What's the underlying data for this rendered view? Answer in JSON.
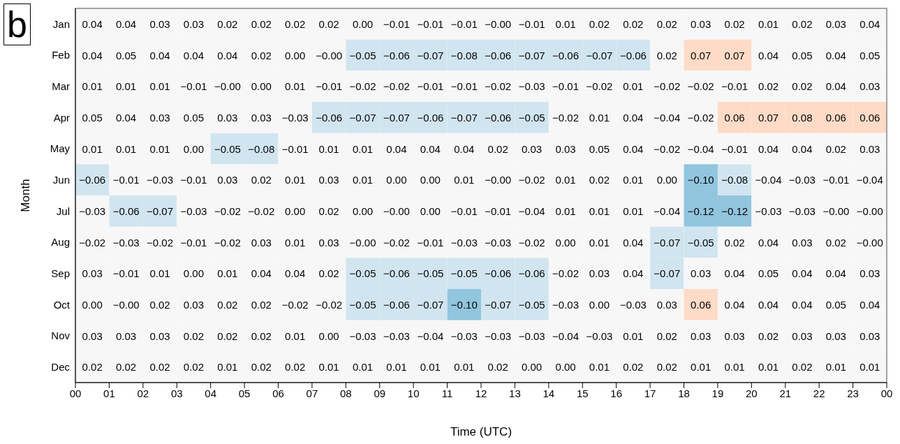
{
  "chart_data": {
    "type": "heatmap",
    "xlabel": "Time (UTC)",
    "ylabel": "Month",
    "annotations": [
      "b"
    ],
    "data_labels": true,
    "xlim": [
      0,
      24
    ],
    "xticks": [
      {
        "value": 0,
        "label": "00"
      },
      {
        "value": 1,
        "label": "01"
      },
      {
        "value": 2,
        "label": "02"
      },
      {
        "value": 3,
        "label": "03"
      },
      {
        "value": 4,
        "label": "04"
      },
      {
        "value": 5,
        "label": "05"
      },
      {
        "value": 6,
        "label": "06"
      },
      {
        "value": 7,
        "label": "07"
      },
      {
        "value": 8,
        "label": "08"
      },
      {
        "value": 9,
        "label": "09"
      },
      10,
      11,
      12,
      13,
      14,
      15,
      16,
      17,
      18,
      19,
      20,
      21,
      22,
      23,
      {
        "value": 24,
        "label": "00"
      }
    ],
    "y_categories": [
      "Jan",
      "Feb",
      "Mar",
      "Apr",
      "May",
      "Jun",
      "Jul",
      "Aug",
      "Sep",
      "Oct",
      "Nov",
      "Dec"
    ],
    "cells": [
      [
        0.04,
        0.04,
        0.03,
        0.03,
        0.02,
        0.02,
        0.02,
        0.02,
        0.0,
        -0.01,
        -0.01,
        -0.01,
        -0.0,
        -0.01,
        0.01,
        0.02,
        0.02,
        0.02,
        0.03,
        0.02,
        0.01,
        0.02,
        0.03,
        0.04
      ],
      [
        0.04,
        0.05,
        0.04,
        0.04,
        0.04,
        0.02,
        0.0,
        -0.0,
        -0.05,
        -0.06,
        -0.07,
        -0.08,
        -0.06,
        -0.07,
        -0.06,
        -0.07,
        -0.06,
        0.02,
        0.07,
        0.07,
        0.04,
        0.05,
        0.04,
        0.05
      ],
      [
        0.01,
        0.01,
        0.01,
        -0.01,
        -0.0,
        0.0,
        0.01,
        -0.01,
        -0.02,
        -0.02,
        -0.01,
        -0.01,
        -0.02,
        -0.03,
        -0.01,
        -0.02,
        0.01,
        -0.02,
        -0.02,
        -0.01,
        0.02,
        0.02,
        0.04,
        0.03
      ],
      [
        0.05,
        0.04,
        0.03,
        0.05,
        0.03,
        0.03,
        -0.03,
        -0.06,
        -0.07,
        -0.07,
        -0.06,
        -0.07,
        -0.06,
        -0.05,
        -0.02,
        0.01,
        0.04,
        -0.04,
        -0.02,
        0.06,
        0.07,
        0.08,
        0.06,
        0.06
      ],
      [
        0.01,
        0.01,
        0.01,
        0.0,
        -0.05,
        -0.08,
        -0.01,
        0.01,
        0.01,
        0.04,
        0.04,
        0.04,
        0.02,
        0.03,
        0.03,
        0.05,
        0.04,
        -0.02,
        -0.04,
        -0.01,
        0.04,
        0.04,
        0.02,
        0.03
      ],
      [
        -0.06,
        -0.01,
        -0.03,
        -0.01,
        0.03,
        0.02,
        0.01,
        0.03,
        0.01,
        0.0,
        0.0,
        0.01,
        -0.0,
        -0.02,
        0.01,
        0.02,
        0.01,
        0.0,
        -0.1,
        -0.08,
        -0.04,
        -0.03,
        -0.01,
        -0.04
      ],
      [
        -0.03,
        -0.06,
        -0.07,
        -0.03,
        -0.02,
        -0.02,
        0.0,
        0.02,
        0.0,
        -0.0,
        0.0,
        -0.01,
        -0.01,
        -0.04,
        0.01,
        0.01,
        0.01,
        -0.04,
        -0.12,
        -0.12,
        -0.03,
        -0.03,
        -0.0,
        -0.0
      ],
      [
        -0.02,
        -0.03,
        -0.02,
        -0.01,
        -0.02,
        0.03,
        0.01,
        0.03,
        -0.0,
        -0.02,
        -0.01,
        -0.03,
        -0.03,
        -0.02,
        0.0,
        0.01,
        0.04,
        -0.07,
        -0.05,
        0.02,
        0.04,
        0.03,
        0.02,
        -0.0
      ],
      [
        0.03,
        -0.01,
        0.01,
        0.0,
        0.01,
        0.04,
        0.04,
        0.02,
        -0.05,
        -0.06,
        -0.05,
        -0.05,
        -0.06,
        -0.06,
        -0.02,
        0.03,
        0.04,
        -0.07,
        0.03,
        0.04,
        0.05,
        0.04,
        0.04,
        0.03
      ],
      [
        0.0,
        -0.0,
        0.02,
        0.03,
        0.02,
        0.02,
        -0.02,
        -0.02,
        -0.05,
        -0.06,
        -0.07,
        -0.1,
        -0.07,
        -0.05,
        -0.03,
        0.0,
        -0.03,
        0.03,
        0.06,
        0.04,
        0.04,
        0.04,
        0.05,
        0.04
      ],
      [
        0.03,
        0.03,
        0.03,
        0.02,
        0.02,
        0.02,
        0.01,
        0.0,
        -0.03,
        -0.03,
        -0.04,
        -0.03,
        -0.03,
        -0.03,
        -0.04,
        -0.03,
        0.01,
        0.02,
        0.03,
        0.03,
        0.02,
        0.03,
        0.03,
        0.03
      ],
      [
        0.02,
        0.02,
        0.02,
        0.02,
        0.01,
        0.02,
        0.02,
        0.01,
        0.01,
        0.01,
        0.01,
        0.01,
        0.02,
        0.0,
        0.0,
        0.01,
        0.02,
        0.02,
        0.01,
        0.01,
        0.01,
        0.02,
        0.01,
        0.01
      ]
    ],
    "cell_labels": [
      [
        "0.04",
        "0.04",
        "0.03",
        "0.03",
        "0.02",
        "0.02",
        "0.02",
        "0.02",
        "0.00",
        "−0.01",
        "−0.01",
        "−0.01",
        "−0.00",
        "−0.01",
        "0.01",
        "0.02",
        "0.02",
        "0.02",
        "0.03",
        "0.02",
        "0.01",
        "0.02",
        "0.03",
        "0.04"
      ],
      [
        "0.04",
        "0.05",
        "0.04",
        "0.04",
        "0.04",
        "0.02",
        "0.00",
        "−0.00",
        "−0.05",
        "−0.06",
        "−0.07",
        "−0.08",
        "−0.06",
        "−0.07",
        "−0.06",
        "−0.07",
        "−0.06",
        "0.02",
        "0.07",
        "0.07",
        "0.04",
        "0.05",
        "0.04",
        "0.05"
      ],
      [
        "0.01",
        "0.01",
        "0.01",
        "−0.01",
        "−0.00",
        "0.00",
        "0.01",
        "−0.01",
        "−0.02",
        "−0.02",
        "−0.01",
        "−0.01",
        "−0.02",
        "−0.03",
        "−0.01",
        "−0.02",
        "0.01",
        "−0.02",
        "−0.02",
        "−0.01",
        "0.02",
        "0.02",
        "0.04",
        "0.03"
      ],
      [
        "0.05",
        "0.04",
        "0.03",
        "0.05",
        "0.03",
        "0.03",
        "−0.03",
        "−0.06",
        "−0.07",
        "−0.07",
        "−0.06",
        "−0.07",
        "−0.06",
        "−0.05",
        "−0.02",
        "0.01",
        "0.04",
        "−0.04",
        "−0.02",
        "0.06",
        "0.07",
        "0.08",
        "0.06",
        "0.06"
      ],
      [
        "0.01",
        "0.01",
        "0.01",
        "0.00",
        "−0.05",
        "−0.08",
        "−0.01",
        "0.01",
        "0.01",
        "0.04",
        "0.04",
        "0.04",
        "0.02",
        "0.03",
        "0.03",
        "0.05",
        "0.04",
        "−0.02",
        "−0.04",
        "−0.01",
        "0.04",
        "0.04",
        "0.02",
        "0.03"
      ],
      [
        "−0.06",
        "−0.01",
        "−0.03",
        "−0.01",
        "0.03",
        "0.02",
        "0.01",
        "0.03",
        "0.01",
        "0.00",
        "0.00",
        "0.01",
        "−0.00",
        "−0.02",
        "0.01",
        "0.02",
        "0.01",
        "0.00",
        "−0.10",
        "−0.08",
        "−0.04",
        "−0.03",
        "−0.01",
        "−0.04"
      ],
      [
        "−0.03",
        "−0.06",
        "−0.07",
        "−0.03",
        "−0.02",
        "−0.02",
        "0.00",
        "0.02",
        "0.00",
        "−0.00",
        "0.00",
        "−0.01",
        "−0.01",
        "−0.04",
        "0.01",
        "0.01",
        "0.01",
        "−0.04",
        "−0.12",
        "−0.12",
        "−0.03",
        "−0.03",
        "−0.00",
        "−0.00"
      ],
      [
        "−0.02",
        "−0.03",
        "−0.02",
        "−0.01",
        "−0.02",
        "0.03",
        "0.01",
        "0.03",
        "−0.00",
        "−0.02",
        "−0.01",
        "−0.03",
        "−0.03",
        "−0.02",
        "0.00",
        "0.01",
        "0.04",
        "−0.07",
        "−0.05",
        "0.02",
        "0.04",
        "0.03",
        "0.02",
        "−0.00"
      ],
      [
        "0.03",
        "−0.01",
        "0.01",
        "0.00",
        "0.01",
        "0.04",
        "0.04",
        "0.02",
        "−0.05",
        "−0.06",
        "−0.05",
        "−0.05",
        "−0.06",
        "−0.06",
        "−0.02",
        "0.03",
        "0.04",
        "−0.07",
        "0.03",
        "0.04",
        "0.05",
        "0.04",
        "0.04",
        "0.03"
      ],
      [
        "0.00",
        "−0.00",
        "0.02",
        "0.03",
        "0.02",
        "0.02",
        "−0.02",
        "−0.02",
        "−0.05",
        "−0.06",
        "−0.07",
        "−0.10",
        "−0.07",
        "−0.05",
        "−0.03",
        "0.00",
        "−0.03",
        "0.03",
        "0.06",
        "0.04",
        "0.04",
        "0.04",
        "0.05",
        "0.04"
      ],
      [
        "0.03",
        "0.03",
        "0.03",
        "0.02",
        "0.02",
        "0.02",
        "0.01",
        "0.00",
        "−0.03",
        "−0.03",
        "−0.04",
        "−0.03",
        "−0.03",
        "−0.03",
        "−0.04",
        "−0.03",
        "0.01",
        "0.02",
        "0.03",
        "0.03",
        "0.02",
        "0.03",
        "0.03",
        "0.03"
      ],
      [
        "0.02",
        "0.02",
        "0.02",
        "0.02",
        "0.01",
        "0.02",
        "0.02",
        "0.01",
        "0.01",
        "0.01",
        "0.01",
        "0.01",
        "0.02",
        "0.00",
        "0.00",
        "0.01",
        "0.02",
        "0.02",
        "0.01",
        "0.01",
        "0.01",
        "0.02",
        "0.01",
        "0.01"
      ]
    ],
    "colors": [
      [
        "#f7f7f7",
        "#f7f7f7",
        "#f7f7f7",
        "#f7f7f7",
        "#f7f7f7",
        "#f7f7f7",
        "#f7f7f7",
        "#f7f7f7",
        "#f7f7f7",
        "#f7f7f7",
        "#f7f7f7",
        "#f7f7f7",
        "#f7f7f7",
        "#f7f7f7",
        "#f7f7f7",
        "#f7f7f7",
        "#f7f7f7",
        "#f7f7f7",
        "#f7f7f7",
        "#f7f7f7",
        "#f7f7f7",
        "#f7f7f7",
        "#f7f7f7",
        "#f7f7f7"
      ],
      [
        "#f7f7f7",
        "#f7f7f7",
        "#f7f7f7",
        "#f7f7f7",
        "#f7f7f7",
        "#f7f7f7",
        "#f7f7f7",
        "#f7f7f7",
        "#d1e5f0",
        "#d1e5f0",
        "#d1e5f0",
        "#d1e5f0",
        "#d1e5f0",
        "#d1e5f0",
        "#d1e5f0",
        "#d1e5f0",
        "#d1e5f0",
        "#f7f7f7",
        "#fddbc7",
        "#fddbc7",
        "#f7f7f7",
        "#f7f7f7",
        "#f7f7f7",
        "#f7f7f7"
      ],
      [
        "#f7f7f7",
        "#f7f7f7",
        "#f7f7f7",
        "#f7f7f7",
        "#f7f7f7",
        "#f7f7f7",
        "#f7f7f7",
        "#f7f7f7",
        "#f7f7f7",
        "#f7f7f7",
        "#f7f7f7",
        "#f7f7f7",
        "#f7f7f7",
        "#f7f7f7",
        "#f7f7f7",
        "#f7f7f7",
        "#f7f7f7",
        "#f7f7f7",
        "#f7f7f7",
        "#f7f7f7",
        "#f7f7f7",
        "#f7f7f7",
        "#f7f7f7",
        "#f7f7f7"
      ],
      [
        "#f7f7f7",
        "#f7f7f7",
        "#f7f7f7",
        "#f7f7f7",
        "#f7f7f7",
        "#f7f7f7",
        "#f7f7f7",
        "#d1e5f0",
        "#d1e5f0",
        "#d1e5f0",
        "#d1e5f0",
        "#d1e5f0",
        "#d1e5f0",
        "#d1e5f0",
        "#f7f7f7",
        "#f7f7f7",
        "#f7f7f7",
        "#f7f7f7",
        "#f7f7f7",
        "#fddbc7",
        "#fddbc7",
        "#fddbc7",
        "#fddbc7",
        "#fddbc7"
      ],
      [
        "#f7f7f7",
        "#f7f7f7",
        "#f7f7f7",
        "#f7f7f7",
        "#d1e5f0",
        "#d1e5f0",
        "#f7f7f7",
        "#f7f7f7",
        "#f7f7f7",
        "#f7f7f7",
        "#f7f7f7",
        "#f7f7f7",
        "#f7f7f7",
        "#f7f7f7",
        "#f7f7f7",
        "#f7f7f7",
        "#f7f7f7",
        "#f7f7f7",
        "#f7f7f7",
        "#f7f7f7",
        "#f7f7f7",
        "#f7f7f7",
        "#f7f7f7",
        "#f7f7f7"
      ],
      [
        "#d1e5f0",
        "#f7f7f7",
        "#f7f7f7",
        "#f7f7f7",
        "#f7f7f7",
        "#f7f7f7",
        "#f7f7f7",
        "#f7f7f7",
        "#f7f7f7",
        "#f7f7f7",
        "#f7f7f7",
        "#f7f7f7",
        "#f7f7f7",
        "#f7f7f7",
        "#f7f7f7",
        "#f7f7f7",
        "#f7f7f7",
        "#f7f7f7",
        "#92c5de",
        "#d1e5f0",
        "#f7f7f7",
        "#f7f7f7",
        "#f7f7f7",
        "#f7f7f7"
      ],
      [
        "#f7f7f7",
        "#d1e5f0",
        "#d1e5f0",
        "#f7f7f7",
        "#f7f7f7",
        "#f7f7f7",
        "#f7f7f7",
        "#f7f7f7",
        "#f7f7f7",
        "#f7f7f7",
        "#f7f7f7",
        "#f7f7f7",
        "#f7f7f7",
        "#f7f7f7",
        "#f7f7f7",
        "#f7f7f7",
        "#f7f7f7",
        "#f7f7f7",
        "#92c5de",
        "#92c5de",
        "#f7f7f7",
        "#f7f7f7",
        "#f7f7f7",
        "#f7f7f7"
      ],
      [
        "#f7f7f7",
        "#f7f7f7",
        "#f7f7f7",
        "#f7f7f7",
        "#f7f7f7",
        "#f7f7f7",
        "#f7f7f7",
        "#f7f7f7",
        "#f7f7f7",
        "#f7f7f7",
        "#f7f7f7",
        "#f7f7f7",
        "#f7f7f7",
        "#f7f7f7",
        "#f7f7f7",
        "#f7f7f7",
        "#f7f7f7",
        "#d1e5f0",
        "#d1e5f0",
        "#f7f7f7",
        "#f7f7f7",
        "#f7f7f7",
        "#f7f7f7",
        "#f7f7f7"
      ],
      [
        "#f7f7f7",
        "#f7f7f7",
        "#f7f7f7",
        "#f7f7f7",
        "#f7f7f7",
        "#f7f7f7",
        "#f7f7f7",
        "#f7f7f7",
        "#d1e5f0",
        "#d1e5f0",
        "#d1e5f0",
        "#d1e5f0",
        "#d1e5f0",
        "#d1e5f0",
        "#f7f7f7",
        "#f7f7f7",
        "#f7f7f7",
        "#d1e5f0",
        "#f7f7f7",
        "#f7f7f7",
        "#f7f7f7",
        "#f7f7f7",
        "#f7f7f7",
        "#f7f7f7"
      ],
      [
        "#f7f7f7",
        "#f7f7f7",
        "#f7f7f7",
        "#f7f7f7",
        "#f7f7f7",
        "#f7f7f7",
        "#f7f7f7",
        "#f7f7f7",
        "#d1e5f0",
        "#d1e5f0",
        "#d1e5f0",
        "#92c5de",
        "#d1e5f0",
        "#d1e5f0",
        "#f7f7f7",
        "#f7f7f7",
        "#f7f7f7",
        "#f7f7f7",
        "#fddbc7",
        "#f7f7f7",
        "#f7f7f7",
        "#f7f7f7",
        "#f7f7f7",
        "#f7f7f7"
      ],
      [
        "#f7f7f7",
        "#f7f7f7",
        "#f7f7f7",
        "#f7f7f7",
        "#f7f7f7",
        "#f7f7f7",
        "#f7f7f7",
        "#f7f7f7",
        "#f7f7f7",
        "#f7f7f7",
        "#f7f7f7",
        "#f7f7f7",
        "#f7f7f7",
        "#f7f7f7",
        "#f7f7f7",
        "#f7f7f7",
        "#f7f7f7",
        "#f7f7f7",
        "#f7f7f7",
        "#f7f7f7",
        "#f7f7f7",
        "#f7f7f7",
        "#f7f7f7",
        "#f7f7f7"
      ],
      [
        "#f7f7f7",
        "#f7f7f7",
        "#f7f7f7",
        "#f7f7f7",
        "#f7f7f7",
        "#f7f7f7",
        "#f7f7f7",
        "#f7f7f7",
        "#f7f7f7",
        "#f7f7f7",
        "#f7f7f7",
        "#f7f7f7",
        "#f7f7f7",
        "#f7f7f7",
        "#f7f7f7",
        "#f7f7f7",
        "#f7f7f7",
        "#f7f7f7",
        "#f7f7f7",
        "#f7f7f7",
        "#f7f7f7",
        "#f7f7f7",
        "#f7f7f7",
        "#f7f7f7"
      ]
    ]
  }
}
